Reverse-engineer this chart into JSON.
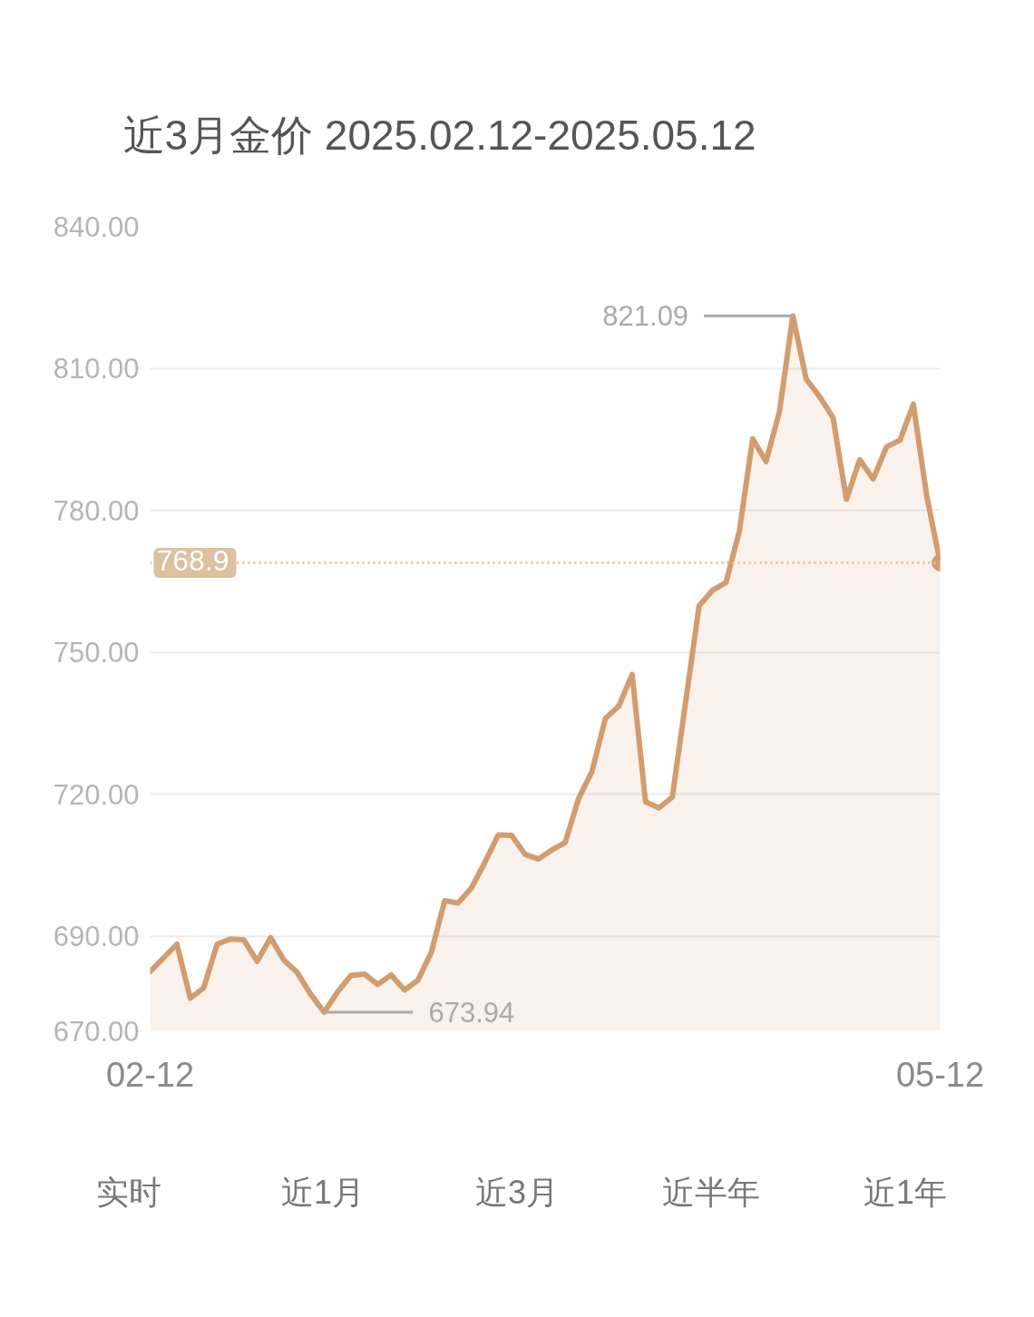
{
  "chart_data": {
    "type": "area",
    "title": "近3月金价 2025.02.12-2025.05.12",
    "categories": [
      "02-12",
      null,
      null,
      null,
      null,
      null,
      null,
      null,
      null,
      null,
      null,
      null,
      null,
      null,
      null,
      null,
      null,
      null,
      null,
      null,
      null,
      null,
      null,
      null,
      null,
      null,
      null,
      null,
      null,
      null,
      null,
      null,
      null,
      null,
      null,
      null,
      null,
      null,
      null,
      null,
      null,
      null,
      null,
      null,
      null,
      null,
      null,
      null,
      null,
      null,
      null,
      null,
      null,
      null,
      null,
      null,
      null,
      null,
      null,
      "05-12"
    ],
    "series": [
      {
        "color": "#d29c6e",
        "values": [
          682.5,
          685.4,
          688.3,
          676.9,
          679.1,
          688.3,
          689.4,
          689.2,
          684.7,
          689.7,
          684.9,
          682.3,
          677.7,
          673.94,
          678.2,
          681.7,
          682.0,
          679.8,
          681.8,
          678.6,
          680.7,
          686.6,
          697.5,
          697.0,
          700.2,
          705.6,
          711.4,
          711.3,
          707.3,
          706.3,
          708.2,
          709.8,
          719.1,
          724.8,
          736.0,
          738.6,
          745.3,
          718.4,
          717.1,
          719.4,
          739.6,
          759.8,
          763.1,
          764.7,
          775.5,
          795.1,
          790.3,
          800.8,
          821.09,
          807.7,
          804.0,
          799.6,
          782.3,
          790.7,
          786.6,
          793.4,
          794.8,
          802.4,
          783.0,
          768.9
        ],
        "value_labels": [
          null,
          null,
          null,
          null,
          null,
          null,
          null,
          null,
          null,
          null,
          null,
          null,
          null,
          "673.94",
          null,
          null,
          null,
          null,
          null,
          null,
          null,
          null,
          null,
          null,
          null,
          null,
          null,
          null,
          null,
          null,
          null,
          null,
          null,
          null,
          null,
          null,
          null,
          null,
          null,
          null,
          null,
          null,
          null,
          null,
          null,
          null,
          null,
          null,
          "821.09",
          null,
          null,
          null,
          null,
          null,
          null,
          null,
          null,
          null,
          null,
          null
        ]
      }
    ],
    "ylim": [
      670,
      840
    ],
    "yticks": [
      {
        "value": 670,
        "label": "670.00"
      },
      {
        "value": 690,
        "label": "690.00"
      },
      {
        "value": 720,
        "label": "720.00"
      },
      {
        "value": 750,
        "label": "750.00"
      },
      {
        "value": 780,
        "label": "780.00"
      },
      {
        "value": 810,
        "label": "810.00"
      },
      {
        "value": 840,
        "label": "840.00"
      }
    ],
    "grid": "y",
    "ref_lines": [
      {
        "axis": "y",
        "value": 768.9,
        "label": "768.9",
        "color": "#e2c48e",
        "line_style": "dotted"
      }
    ],
    "annotations": [
      "实时",
      "近1月",
      "近3月",
      "近半年",
      "近1年"
    ]
  }
}
